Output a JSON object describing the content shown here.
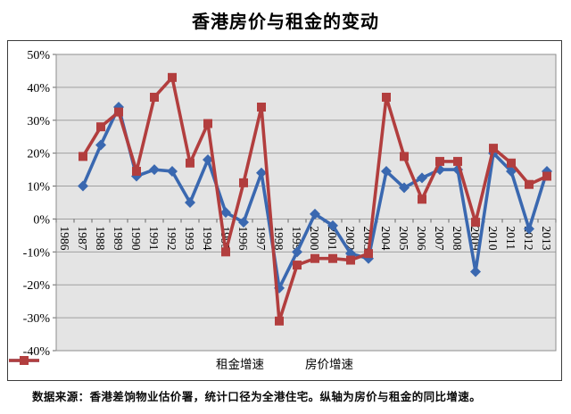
{
  "title": "香港房价与租金的变动",
  "footer": "数据来源：香港差饷物业估价署，统计口径为全港住宅。纵轴为房价与租金的同比增速。",
  "style": {
    "plot_bg": "#e4e4e4",
    "grid_color": "#a0a0a0",
    "axis_color": "#666666",
    "plot_border": "#8e8e8e",
    "box_border": "#3c3c3c"
  },
  "chart_data": {
    "type": "line",
    "title": "香港房价与租金的变动",
    "categories": [
      "1986",
      "1987",
      "1988",
      "1989",
      "1990",
      "1991",
      "1992",
      "1993",
      "1994",
      "1995",
      "1996",
      "1997",
      "1998",
      "1999",
      "2000",
      "2001",
      "2002",
      "2003",
      "2004",
      "2005",
      "2006",
      "2007",
      "2008",
      "2009",
      "2010",
      "2011",
      "2012",
      "2013"
    ],
    "series": [
      {
        "name": "租金增速",
        "marker": "diamond",
        "color": "#3a68b0",
        "values": [
          null,
          10,
          22.5,
          34,
          13,
          15,
          14.5,
          5,
          18,
          2,
          -1,
          14,
          -21,
          -10,
          1.5,
          -2,
          -10.5,
          -12,
          14.5,
          9.5,
          12.5,
          15,
          15,
          -16,
          20,
          14.5,
          -3,
          14.5
        ]
      },
      {
        "name": "房价增速",
        "marker": "square",
        "color": "#b23e3e",
        "values": [
          null,
          19,
          28,
          32.5,
          14.5,
          37,
          43,
          17,
          29,
          -10,
          11,
          34,
          -31,
          -14,
          -12,
          -12,
          -12.5,
          -10.5,
          37,
          19,
          6,
          17.5,
          17.5,
          -1,
          21.5,
          17,
          10.5,
          13
        ]
      }
    ],
    "ylim": [
      -40,
      50
    ],
    "ytick_step": 10,
    "ytick_labels": [
      "50%",
      "40%",
      "30%",
      "20%",
      "10%",
      "0%",
      "-10%",
      "-20%",
      "-30%",
      "-40%"
    ],
    "ytick_format": "percent",
    "grid": true,
    "legend_position": "bottom",
    "x_label_rotation": 90
  }
}
